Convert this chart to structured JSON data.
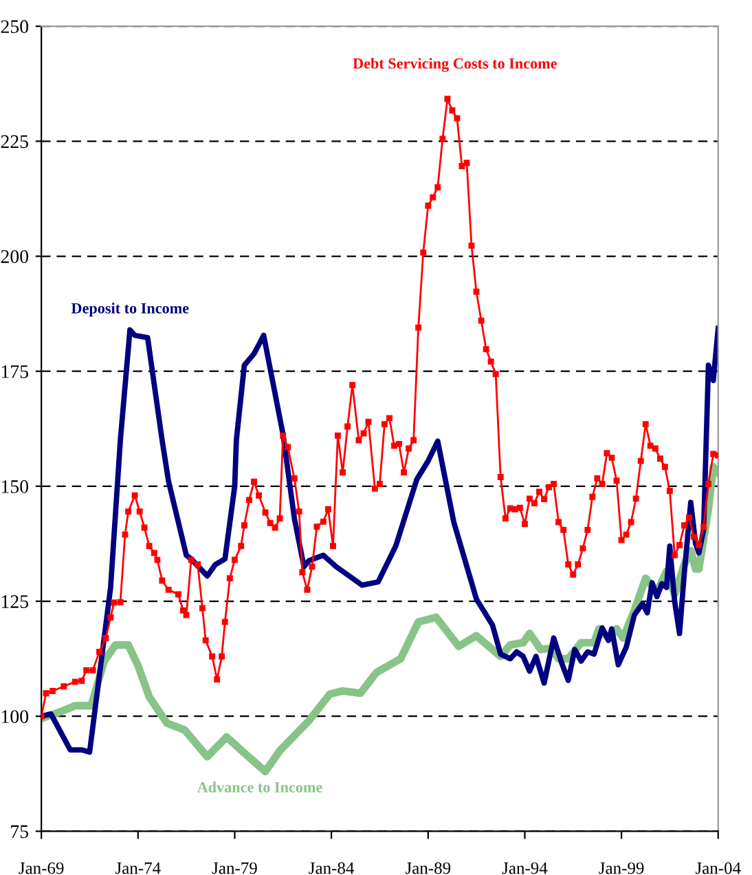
{
  "chart_data": {
    "type": "line",
    "xlim": [
      "1969-01",
      "2004-01"
    ],
    "ylim": [
      75,
      250
    ],
    "xticks": [
      {
        "value": "1969-01",
        "label": "Jan-69"
      },
      {
        "value": "1974-01",
        "label": "Jan-74"
      },
      {
        "value": "1979-01",
        "label": "Jan-79"
      },
      {
        "value": "1984-01",
        "label": "Jan-84"
      },
      {
        "value": "1989-01",
        "label": "Jan-89"
      },
      {
        "value": "1994-01",
        "label": "Jan-94"
      },
      {
        "value": "1999-01",
        "label": "Jan-99"
      },
      {
        "value": "2004-01",
        "label": "Jan-04"
      }
    ],
    "yticks": [
      75,
      100,
      125,
      150,
      175,
      200,
      225,
      250
    ],
    "grid": "y",
    "line_style": "solid",
    "series": [
      {
        "name": "Debt Servicing Costs to Income",
        "color": "#ff0000",
        "marker": "square",
        "x": [
          "1969-01",
          "1969-04",
          "1969-08",
          "1970-03",
          "1970-10",
          "1971-02",
          "1971-05",
          "1971-09",
          "1972-01",
          "1972-05",
          "1972-08",
          "1972-10",
          "1973-02",
          "1973-05",
          "1973-07",
          "1973-11",
          "1974-02",
          "1974-05",
          "1974-08",
          "1974-11",
          "1975-01",
          "1975-04",
          "1975-08",
          "1976-02",
          "1976-05",
          "1976-07",
          "1976-10",
          "1977-02",
          "1977-05",
          "1977-07",
          "1977-11",
          "1978-02",
          "1978-05",
          "1978-07",
          "1978-10",
          "1979-01",
          "1979-05",
          "1979-07",
          "1979-10",
          "1980-01",
          "1980-04",
          "1980-08",
          "1980-11",
          "1981-02",
          "1981-05",
          "1981-07",
          "1981-10",
          "1982-02",
          "1982-05",
          "1982-07",
          "1982-10",
          "1983-01",
          "1983-04",
          "1983-08",
          "1983-11",
          "1984-02",
          "1984-05",
          "1984-08",
          "1984-11",
          "1985-02",
          "1985-06",
          "1985-09",
          "1985-12",
          "1986-04",
          "1986-07",
          "1986-10",
          "1987-01",
          "1987-04",
          "1987-07",
          "1987-10",
          "1988-01",
          "1988-04",
          "1988-07",
          "1988-10",
          "1989-01",
          "1989-04",
          "1989-07",
          "1989-10",
          "1990-01",
          "1990-04",
          "1990-07",
          "1990-10",
          "1991-01",
          "1991-04",
          "1991-07",
          "1991-10",
          "1992-01",
          "1992-04",
          "1992-07",
          "1992-10",
          "1993-01",
          "1993-04",
          "1993-07",
          "1993-10",
          "1994-01",
          "1994-04",
          "1994-07",
          "1994-10",
          "1995-01",
          "1995-04",
          "1995-07",
          "1995-10",
          "1996-01",
          "1996-04",
          "1996-07",
          "1996-10",
          "1997-01",
          "1997-04",
          "1997-07",
          "1997-10",
          "1998-01",
          "1998-04",
          "1998-07",
          "1998-10",
          "1999-01",
          "1999-04",
          "1999-07",
          "1999-10",
          "2000-01",
          "2000-04",
          "2000-07",
          "2000-10",
          "2001-01",
          "2001-04",
          "2001-07",
          "2001-10",
          "2002-01",
          "2002-04",
          "2002-07",
          "2002-10",
          "2003-01",
          "2003-04",
          "2003-07",
          "2003-10",
          "2004-01"
        ],
        "values": [
          100,
          105,
          105.5,
          106.5,
          107.5,
          107.7,
          110,
          110,
          114,
          117,
          121.5,
          124.7,
          124.8,
          139.5,
          144.5,
          148,
          144.5,
          141,
          137,
          135.5,
          134,
          129.5,
          127.5,
          126.5,
          123,
          122,
          134,
          133,
          123.5,
          116.5,
          113,
          108,
          113,
          120.5,
          130,
          134,
          137,
          141.5,
          147,
          151,
          148,
          144.3,
          142,
          141,
          143,
          161,
          158.5,
          151.7,
          144.5,
          131.3,
          127.5,
          132.5,
          141.2,
          142.3,
          145,
          137,
          161,
          153,
          163,
          172,
          160,
          161.5,
          164,
          149.5,
          150.5,
          163.5,
          164.8,
          158.8,
          159.2,
          153,
          158.2,
          160,
          184.5,
          200.8,
          211,
          212.8,
          215,
          225.5,
          234.2,
          231.7,
          230,
          219.6,
          220.3,
          202.3,
          192.3,
          186,
          179.8,
          177.1,
          174.4,
          152,
          143,
          145.2,
          145,
          145.3,
          141.8,
          147.3,
          146.3,
          148.8,
          147.2,
          149.8,
          150.5,
          142.2,
          140.5,
          133,
          130.8,
          133,
          136.5,
          140.5,
          147.7,
          151.7,
          150.5,
          157.2,
          156.2,
          151.2,
          138.3,
          139.5,
          142.2,
          147.3,
          155.5,
          163.5,
          158.8,
          158.2,
          156,
          154.2,
          149,
          135,
          137.2,
          141.5,
          143.2,
          139,
          137.2,
          141.2,
          150.5,
          157,
          156.7
        ]
      },
      {
        "name": "Deposit to Income",
        "color": "#000080",
        "marker": "none",
        "x": [
          "1969-01",
          "1969-07",
          "1970-07",
          "1971-02",
          "1971-07",
          "1972-08",
          "1973-02",
          "1973-08",
          "1973-11",
          "1974-07",
          "1975-04",
          "1975-08",
          "1976-07",
          "1976-10",
          "1977-08",
          "1978-01",
          "1978-07",
          "1979-01",
          "1979-02",
          "1979-07",
          "1980-01",
          "1980-07",
          "1981-07",
          "1982-02",
          "1982-08",
          "1982-11",
          "1983-08",
          "1984-04",
          "1984-10",
          "1985-08",
          "1986-06",
          "1987-05",
          "1988-06",
          "1989-01",
          "1989-07",
          "1990-05",
          "1991-07",
          "1992-05",
          "1992-10",
          "1993-04",
          "1993-08",
          "1993-12",
          "1994-04",
          "1994-08",
          "1995-01",
          "1995-07",
          "1995-12",
          "1996-04",
          "1996-08",
          "1996-12",
          "1997-04",
          "1997-08",
          "1998-01",
          "1998-05",
          "1998-07",
          "1998-11",
          "1999-04",
          "1999-09",
          "2000-02",
          "2000-05",
          "2000-08",
          "2000-11",
          "2001-02",
          "2001-05",
          "2001-07",
          "2001-10",
          "2002-01",
          "2002-04",
          "2002-08",
          "2002-11",
          "2003-01",
          "2003-04",
          "2003-07",
          "2003-10",
          "2004-01"
        ],
        "values": [
          100,
          100.5,
          92.7,
          92.7,
          92.2,
          128,
          160,
          184,
          182.8,
          182.3,
          160,
          151,
          135,
          134.2,
          130.5,
          133,
          134.2,
          150,
          160,
          176.3,
          178.8,
          182.8,
          161.3,
          143,
          132.5,
          133.8,
          135,
          132.5,
          131,
          128.5,
          129.2,
          137,
          151.5,
          155.5,
          159.8,
          142.2,
          125.5,
          119.8,
          113.5,
          112.5,
          114,
          113,
          109.8,
          113,
          107.2,
          117,
          111.5,
          107.8,
          114.5,
          112,
          114,
          113.5,
          119.2,
          116.5,
          119,
          111.2,
          115,
          122,
          124.5,
          122.5,
          129,
          126,
          128.8,
          128,
          137,
          125,
          118,
          131,
          146.5,
          137.5,
          135.5,
          140.5,
          176.3,
          173,
          184.3
        ]
      },
      {
        "name": "Advance to Income",
        "color": "#88c488",
        "marker": "none",
        "x": [
          "1969-01",
          "1970-01",
          "1970-10",
          "1971-08",
          "1972-04",
          "1972-11",
          "1973-07",
          "1974-01",
          "1974-08",
          "1975-07",
          "1976-06",
          "1977-08",
          "1978-08",
          "1979-07",
          "1980-08",
          "1981-05",
          "1982-11",
          "1983-12",
          "1984-08",
          "1985-07",
          "1986-05",
          "1987-08",
          "1988-07",
          "1989-06",
          "1990-08",
          "1991-07",
          "1992-10",
          "1993-04",
          "1993-12",
          "1994-04",
          "1994-11",
          "1995-05",
          "1995-10",
          "1996-04",
          "1996-12",
          "1997-08",
          "1997-11",
          "1998-05",
          "1998-10",
          "1999-02",
          "1999-09",
          "2000-04",
          "2000-11",
          "2001-05",
          "2001-10",
          "2002-04",
          "2002-08",
          "2002-11",
          "2003-01",
          "2003-07",
          "2003-10",
          "2004-01"
        ],
        "values": [
          99.5,
          101,
          102.3,
          102.3,
          112,
          115.5,
          115.5,
          111,
          104.2,
          98.5,
          97,
          91.2,
          95.5,
          92,
          88,
          92.5,
          99,
          104.8,
          105.5,
          105,
          109.5,
          112.5,
          120.5,
          121.5,
          115.2,
          117.5,
          113,
          115.5,
          116,
          118,
          114.5,
          114.8,
          112.5,
          112.5,
          116,
          116,
          119,
          117,
          119,
          117,
          123,
          130,
          127,
          131.5,
          126.5,
          133,
          136,
          132,
          132,
          145,
          154.2,
          153
        ]
      }
    ]
  }
}
